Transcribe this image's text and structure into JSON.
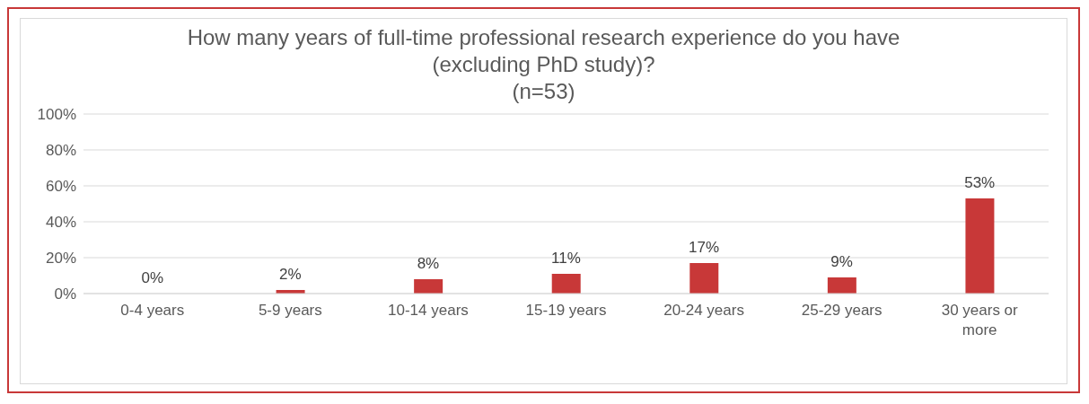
{
  "chart_data": {
    "type": "bar",
    "title": "How many years of full-time professional research experience do you have (excluding PhD study)?",
    "subtitle": "(n=53)",
    "categories": [
      "0-4 years",
      "5-9 years",
      "10-14 years",
      "15-19 years",
      "20-24 years",
      "25-29 years",
      "30 years or more"
    ],
    "values": [
      0,
      2,
      8,
      11,
      17,
      9,
      53
    ],
    "color": "#c83838",
    "ylim": [
      0,
      100
    ],
    "yticks": [
      {
        "value": 0,
        "label": "0%"
      },
      {
        "value": 20,
        "label": "20%"
      },
      {
        "value": 40,
        "label": "40%"
      },
      {
        "value": 60,
        "label": "60%"
      },
      {
        "value": 80,
        "label": "80%"
      },
      {
        "value": 100,
        "label": "100%"
      }
    ],
    "grid": "y",
    "value_labels": [
      "0%",
      "2%",
      "8%",
      "11%",
      "17%",
      "9%",
      "53%"
    ]
  }
}
